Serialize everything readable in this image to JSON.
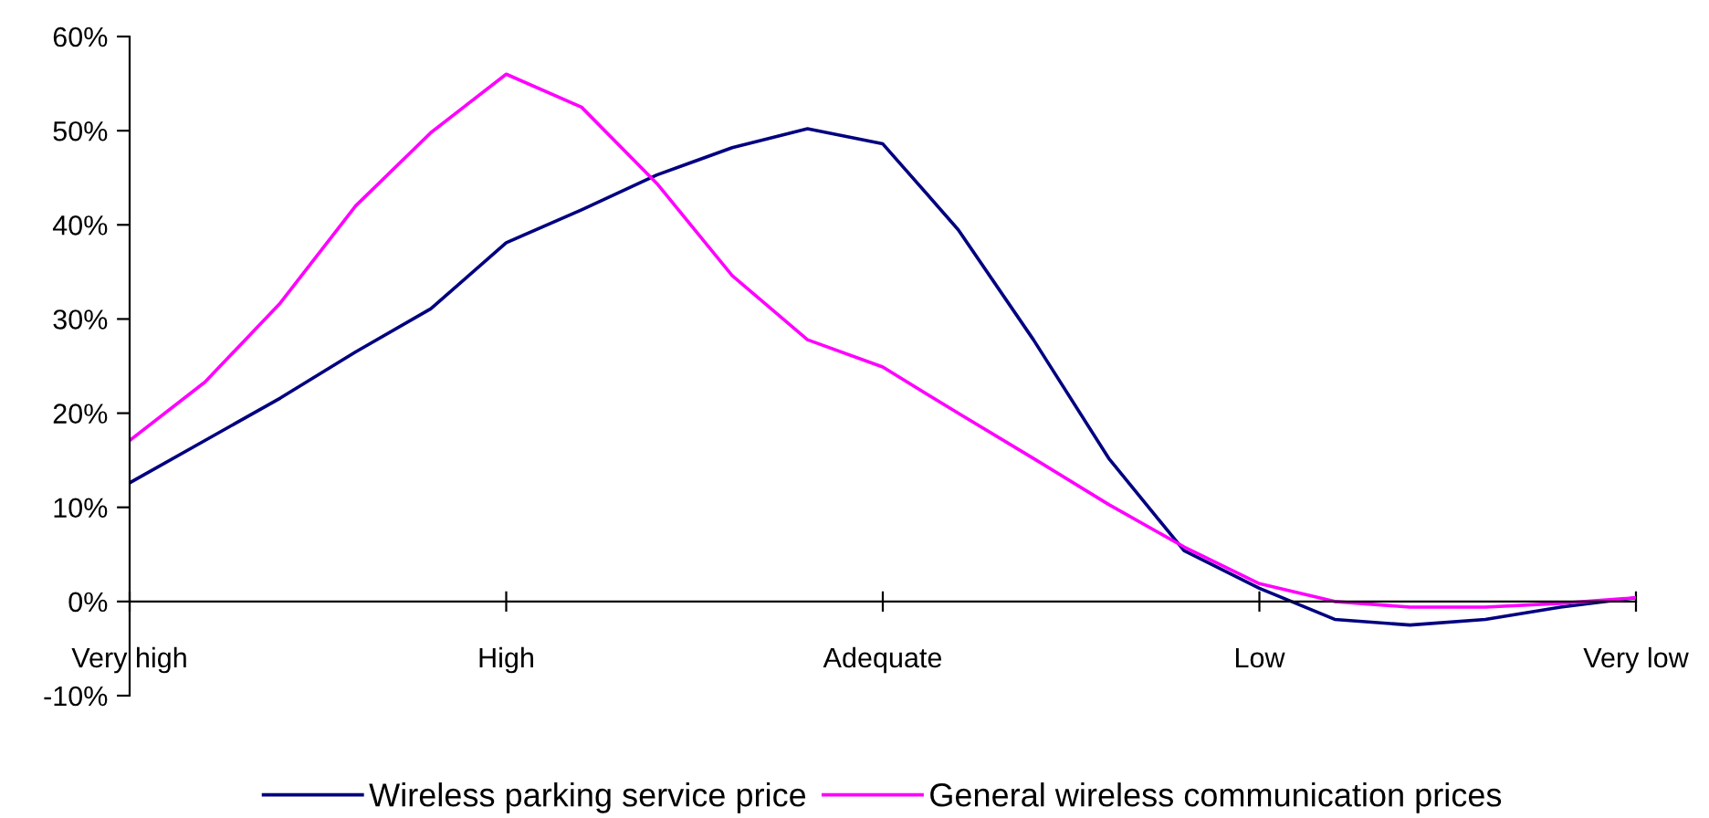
{
  "chart_data": {
    "type": "line",
    "categories": [
      "Very high",
      null,
      null,
      null,
      null,
      "High",
      null,
      null,
      null,
      null,
      "Adequate",
      null,
      null,
      null,
      null,
      "Low",
      null,
      null,
      null,
      null,
      "Very low"
    ],
    "series": [
      {
        "name": "Wireless parking service price",
        "color": "#000080",
        "values": [
          12.6,
          17.1,
          21.6,
          26.5,
          31.1,
          38.1,
          41.6,
          45.3,
          48.2,
          50.2,
          48.6,
          39.5,
          27.8,
          15.2,
          5.4,
          1.4,
          -1.9,
          -2.5,
          -1.9,
          -0.6,
          0.4
        ]
      },
      {
        "name": "General wireless communication prices",
        "color": "#ff00ff",
        "values": [
          17.1,
          23.3,
          31.7,
          42.0,
          49.8,
          56.0,
          52.5,
          44.4,
          34.6,
          27.8,
          24.9,
          20.0,
          15.2,
          10.3,
          5.8,
          1.9,
          0,
          -0.6,
          -0.6,
          -0.2,
          0.4
        ]
      }
    ],
    "ylim": [
      -10,
      60
    ],
    "yticks": [
      {
        "value": -10,
        "label": "-10%"
      },
      {
        "value": 0,
        "label": "0%"
      },
      {
        "value": 10,
        "label": "10%"
      },
      {
        "value": 20,
        "label": "20%"
      },
      {
        "value": 30,
        "label": "30%"
      },
      {
        "value": 40,
        "label": "40%"
      },
      {
        "value": 50,
        "label": "50%"
      },
      {
        "value": 60,
        "label": "60%"
      }
    ],
    "grid": false,
    "legend": "bottom",
    "marker": "none",
    "line_style": "solid"
  }
}
